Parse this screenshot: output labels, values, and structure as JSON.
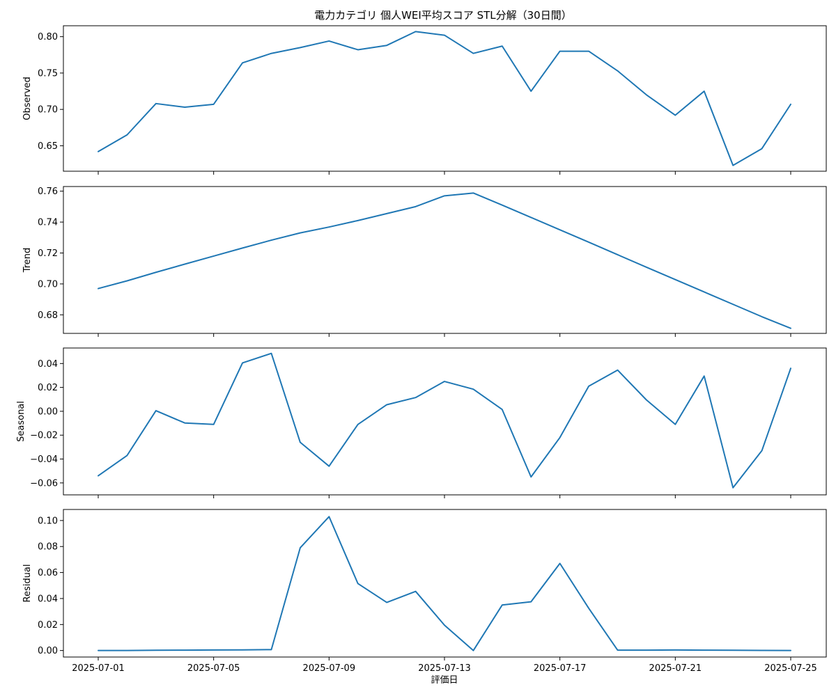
{
  "chart_data": {
    "type": "line",
    "title": "電力カテゴリ 個人WEI平均スコア STL分解（30日間）",
    "xlabel": "評価日",
    "color": "#1f77b4",
    "x": [
      "2025-07-01",
      "2025-07-02",
      "2025-07-03",
      "2025-07-04",
      "2025-07-05",
      "2025-07-06",
      "2025-07-07",
      "2025-07-08",
      "2025-07-09",
      "2025-07-10",
      "2025-07-11",
      "2025-07-12",
      "2025-07-13",
      "2025-07-14",
      "2025-07-15",
      "2025-07-16",
      "2025-07-17",
      "2025-07-18",
      "2025-07-19",
      "2025-07-20",
      "2025-07-21",
      "2025-07-22",
      "2025-07-23",
      "2025-07-24",
      "2025-07-25"
    ],
    "x_tick_labels": [
      "2025-07-01",
      "2025-07-05",
      "2025-07-09",
      "2025-07-13",
      "2025-07-17",
      "2025-07-21",
      "2025-07-25"
    ],
    "panels": [
      {
        "ylabel": "Observed",
        "ylim": [
          0.615,
          0.815
        ],
        "yticks": [
          0.65,
          0.7,
          0.75,
          0.8
        ],
        "ytick_labels": [
          "0.65",
          "0.70",
          "0.75",
          "0.80"
        ],
        "values": [
          0.642,
          0.665,
          0.708,
          0.703,
          0.707,
          0.764,
          0.777,
          0.785,
          0.794,
          0.782,
          0.788,
          0.807,
          0.802,
          0.777,
          0.787,
          0.725,
          0.78,
          0.78,
          0.753,
          0.72,
          0.692,
          0.725,
          0.623,
          0.646,
          0.707
        ]
      },
      {
        "ylabel": "Trend",
        "ylim": [
          0.668,
          0.763
        ],
        "yticks": [
          0.68,
          0.7,
          0.72,
          0.74,
          0.76
        ],
        "ytick_labels": [
          "0.68",
          "0.70",
          "0.72",
          "0.74",
          "0.76"
        ],
        "values": [
          0.697,
          0.702,
          0.7075,
          0.7128,
          0.718,
          0.7232,
          0.7283,
          0.733,
          0.7368,
          0.741,
          0.7455,
          0.75,
          0.757,
          0.7588,
          0.751,
          0.743,
          0.735,
          0.727,
          0.7189,
          0.7108,
          0.7028,
          0.6948,
          0.6868,
          0.6788,
          0.6713
        ]
      },
      {
        "ylabel": "Seasonal",
        "ylim": [
          -0.07,
          0.053
        ],
        "yticks": [
          -0.06,
          -0.04,
          -0.02,
          0.0,
          0.02,
          0.04
        ],
        "ytick_labels": [
          "−0.06",
          "−0.04",
          "−0.02",
          "0.00",
          "0.02",
          "0.04"
        ],
        "values": [
          -0.054,
          -0.037,
          0.0005,
          -0.0098,
          -0.011,
          0.0405,
          0.0485,
          -0.026,
          -0.046,
          -0.011,
          0.0055,
          0.0115,
          0.025,
          0.0185,
          0.0015,
          -0.055,
          -0.022,
          0.021,
          0.0345,
          0.0095,
          -0.011,
          0.0295,
          -0.064,
          -0.033,
          0.036
        ]
      },
      {
        "ylabel": "Residual",
        "ylim": [
          -0.005,
          0.1085
        ],
        "yticks": [
          0.0,
          0.02,
          0.04,
          0.06,
          0.08,
          0.1
        ],
        "ytick_labels": [
          "0.00",
          "0.02",
          "0.04",
          "0.06",
          "0.08",
          "0.10"
        ],
        "values": [
          0.0,
          0.0,
          0.0002,
          0.0003,
          0.0004,
          0.0005,
          0.0007,
          0.079,
          0.103,
          0.0515,
          0.037,
          0.0455,
          0.0195,
          0.0,
          0.035,
          0.0375,
          0.067,
          0.0325,
          0.0003,
          0.0003,
          0.0004,
          0.0003,
          0.0002,
          0.0001,
          0.0
        ]
      }
    ]
  }
}
